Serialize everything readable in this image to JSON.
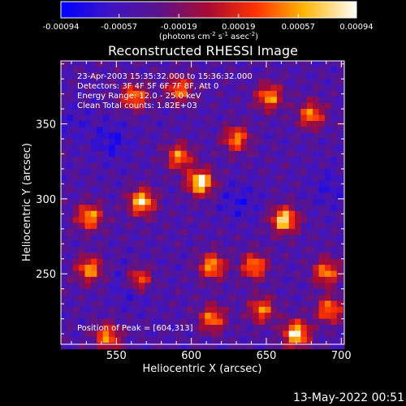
{
  "chart_data": {
    "type": "heatmap",
    "title": "Reconstructed RHESSI Image",
    "xlabel": "Heliocentric X (arcsec)",
    "ylabel": "Heliocentric Y (arcsec)",
    "xlim": [
      513,
      702
    ],
    "ylim": [
      203,
      392
    ],
    "x_ticks": [
      550,
      600,
      650,
      700
    ],
    "y_ticks": [
      250,
      300,
      350
    ],
    "colorbar": {
      "range": [
        -0.00094,
        0.00094
      ],
      "tick_values": [
        -0.00094,
        -0.00057,
        -0.00019,
        0.00019,
        0.00057,
        0.00094
      ],
      "tick_labels": [
        "-0.00094",
        "-0.00057",
        "-0.00019",
        "0.00019",
        "0.00057",
        "0.00094"
      ],
      "unit_parts": {
        "a": "(photons cm",
        "a_sup": "-2",
        "b": " s",
        "b_sup": "-1",
        "c": " asec",
        "c_sup": "-2",
        "d": ")"
      }
    },
    "annotations": [
      "23-Apr-2003 15:35:32.000 to 15:36:32.000",
      "Detectors: 3F 4F 5F 6F 7F 8F, Att 0",
      "Energy Range: 12.0 - 25.0 keV",
      "Clean    Total counts: 1.82E+03"
    ],
    "peak_label": "Position of Peak = [604,313]",
    "peak": [
      604,
      313
    ],
    "bright_regions": [
      {
        "x": 604,
        "y": 313,
        "value": 0.00094
      },
      {
        "x": 660,
        "y": 288,
        "value": 0.00085
      },
      {
        "x": 668,
        "y": 212,
        "value": 0.00088
      },
      {
        "x": 565,
        "y": 300,
        "value": 0.0008
      },
      {
        "x": 563,
        "y": 248,
        "value": 0.0007
      },
      {
        "x": 530,
        "y": 290,
        "value": 0.0006
      },
      {
        "x": 530,
        "y": 255,
        "value": 0.00055
      },
      {
        "x": 612,
        "y": 257,
        "value": 0.0006
      },
      {
        "x": 640,
        "y": 257,
        "value": 0.00055
      },
      {
        "x": 688,
        "y": 253,
        "value": 0.00052
      },
      {
        "x": 690,
        "y": 228,
        "value": 0.0005
      },
      {
        "x": 650,
        "y": 370,
        "value": 0.00055
      },
      {
        "x": 678,
        "y": 358,
        "value": 0.0005
      },
      {
        "x": 560,
        "y": 370,
        "value": 0.00052
      },
      {
        "x": 590,
        "y": 375,
        "value": 0.00045
      },
      {
        "x": 628,
        "y": 342,
        "value": 0.0005
      },
      {
        "x": 542,
        "y": 210,
        "value": 0.0005
      },
      {
        "x": 612,
        "y": 222,
        "value": 0.0005
      },
      {
        "x": 645,
        "y": 228,
        "value": 0.00045
      },
      {
        "x": 590,
        "y": 330,
        "value": 0.0005
      }
    ],
    "dim_regions": [
      {
        "x": 545,
        "y": 340,
        "value": -0.00075
      },
      {
        "x": 560,
        "y": 245,
        "value": -0.0009
      },
      {
        "x": 630,
        "y": 300,
        "value": -0.0007
      },
      {
        "x": 690,
        "y": 310,
        "value": -0.00065
      },
      {
        "x": 520,
        "y": 352,
        "value": -0.0006
      }
    ]
  },
  "footer": {
    "date": "13-May-2022 00:51"
  }
}
